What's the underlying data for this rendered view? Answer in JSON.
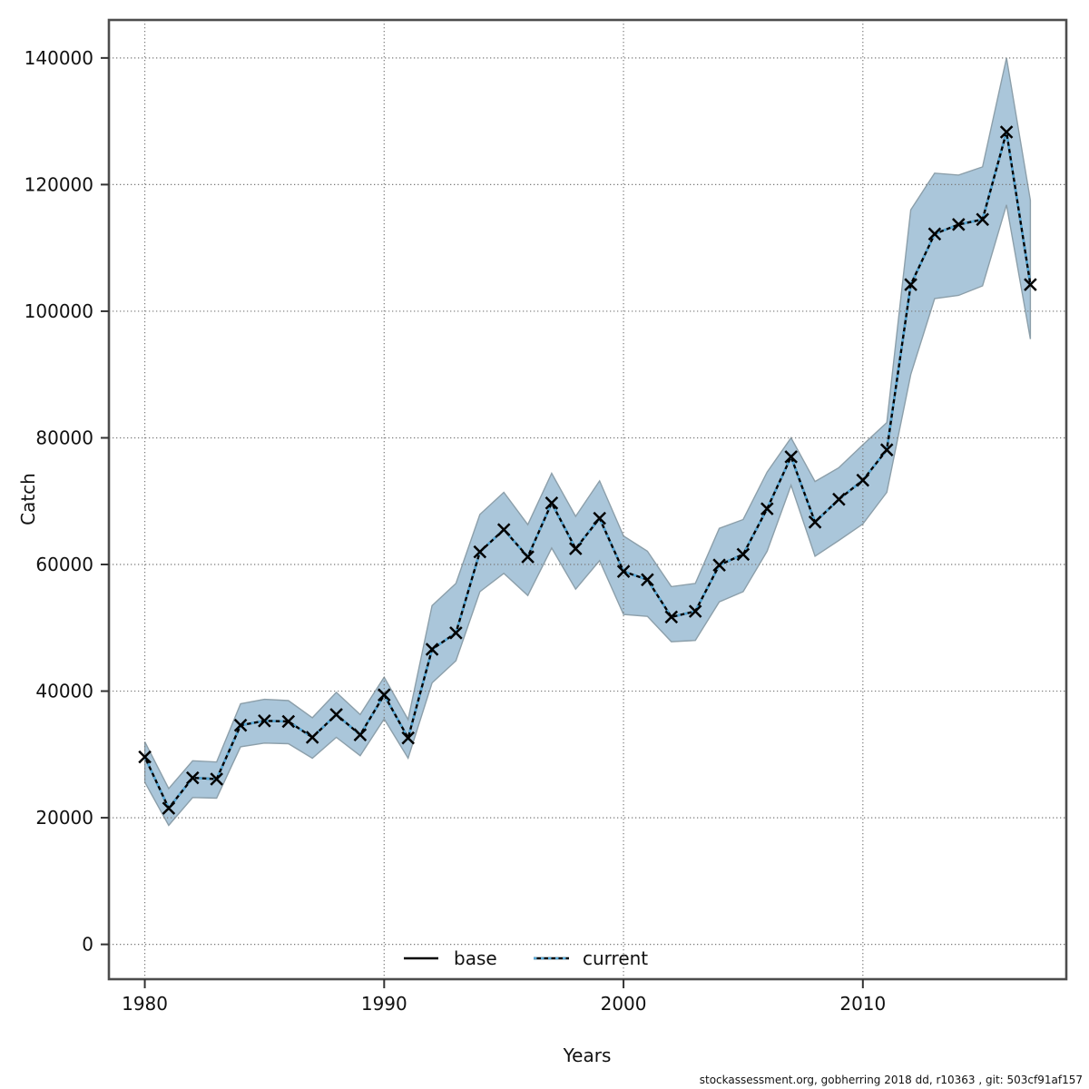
{
  "chart_data": {
    "type": "line",
    "title": "",
    "xlabel": "Years",
    "ylabel": "Catch",
    "xlim": [
      1978.5,
      2018.5
    ],
    "ylim": [
      -5500,
      146000
    ],
    "grid": "dotted; vertical lines at decades, horizontal lines every 20000",
    "legend_position": "bottom-center-inside",
    "x_ticks": [
      1980,
      1990,
      2000,
      2010
    ],
    "y_ticks": [
      0,
      20000,
      40000,
      60000,
      80000,
      100000,
      120000,
      140000
    ],
    "years": [
      1980,
      1981,
      1982,
      1983,
      1984,
      1985,
      1986,
      1987,
      1988,
      1989,
      1990,
      1991,
      1992,
      1993,
      1994,
      1995,
      1996,
      1997,
      1998,
      1999,
      2000,
      2001,
      2002,
      2003,
      2004,
      2005,
      2006,
      2007,
      2008,
      2009,
      2010,
      2011,
      2012,
      2013,
      2014,
      2015,
      2016,
      2017
    ],
    "series": [
      {
        "name": "base",
        "line": "solid",
        "color": "#000000",
        "marker": "x",
        "values": [
          29600,
          21500,
          26300,
          26100,
          34600,
          35300,
          35200,
          32700,
          36300,
          33100,
          39400,
          32600,
          46600,
          49200,
          62000,
          65500,
          61200,
          69700,
          62500,
          67300,
          58900,
          57600,
          51700,
          52600,
          59900,
          61600,
          68800,
          77000,
          66700,
          70300,
          73300,
          78100,
          104200,
          112200,
          113700,
          114500,
          128300,
          104200
        ]
      },
      {
        "name": "current",
        "line": "dashed",
        "color": "#56a9d8",
        "marker": "none",
        "values": [
          29600,
          21500,
          26300,
          26100,
          34600,
          35300,
          35200,
          32700,
          36300,
          33100,
          39400,
          32600,
          46600,
          49200,
          62000,
          65500,
          61200,
          69700,
          62500,
          67300,
          58900,
          57600,
          51700,
          52600,
          59900,
          61600,
          68800,
          77000,
          66700,
          70300,
          73300,
          78100,
          104200,
          112200,
          113700,
          114500,
          128300,
          104200
        ]
      }
    ],
    "band": {
      "series": "current",
      "fill": "rgba(85,141,181,0.5)",
      "edge": "#8c9faa",
      "lower": [
        25600,
        18800,
        23200,
        23100,
        31200,
        31800,
        31700,
        29400,
        32700,
        29800,
        35600,
        29400,
        41300,
        44800,
        55700,
        58600,
        55100,
        62600,
        56100,
        60600,
        52100,
        51800,
        47800,
        48000,
        54100,
        55700,
        62100,
        72500,
        61300,
        63800,
        66400,
        71400,
        90000,
        102000,
        102500,
        104000,
        116800,
        95600
      ],
      "upper": [
        32000,
        24600,
        29000,
        28800,
        38000,
        38700,
        38500,
        35800,
        39800,
        36300,
        42200,
        35500,
        53500,
        57000,
        67900,
        71400,
        66300,
        74400,
        67600,
        73200,
        64500,
        62100,
        56500,
        57000,
        65700,
        67100,
        74600,
        80000,
        73100,
        75300,
        78900,
        82400,
        116000,
        121800,
        121500,
        122800,
        140000,
        117500
      ]
    }
  },
  "legend": {
    "base_label": "base",
    "current_label": "current"
  },
  "footer": {
    "credit": "stockassessment.org, gobherring  2018  dd, r10363 , git: 503cf91af157"
  },
  "colors": {
    "axis_border": "#4d4d4d",
    "grid": "#7a7a7a",
    "tick": "#333333",
    "marker": "#000000"
  }
}
